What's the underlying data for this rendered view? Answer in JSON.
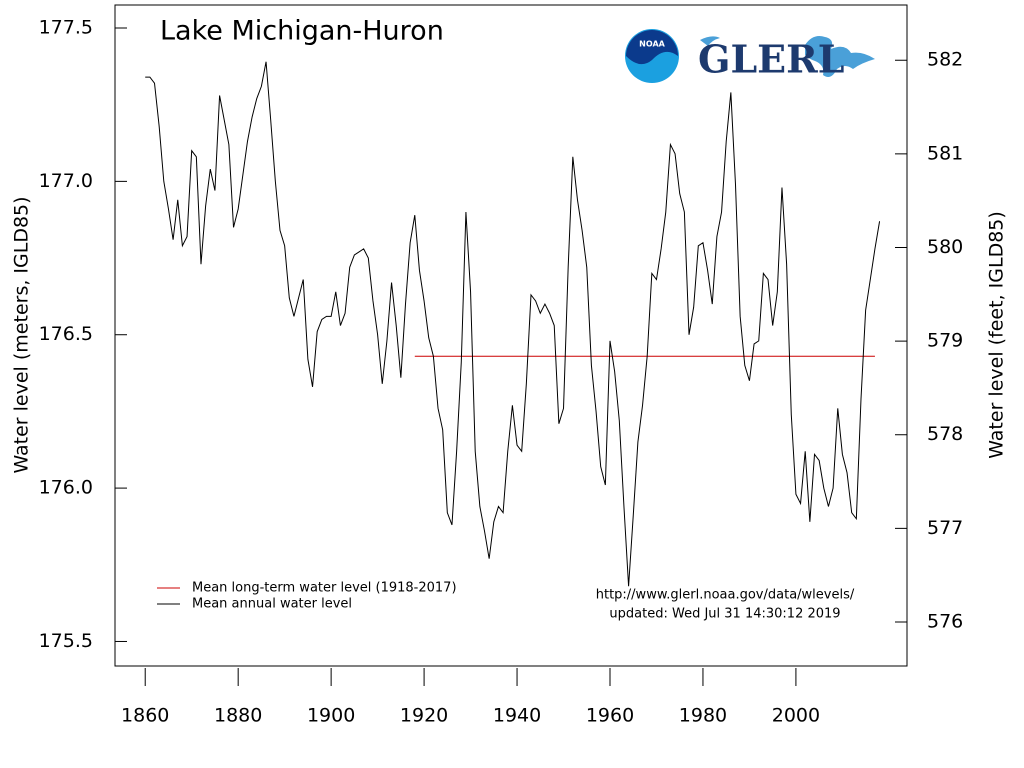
{
  "chart_data": {
    "type": "line",
    "title": "Lake Michigan-Huron",
    "ylabel": "Water level (meters, IGLD85)",
    "y2label": "Water level (feet, IGLD85)",
    "logos": [
      "NOAA",
      "GLERL"
    ],
    "annotations": [
      "http://www.glerl.noaa.gov/data/wlevels/",
      "updated: Wed Jul 31 14:30:12 2019"
    ],
    "xlim": [
      1853.5,
      2023.9
    ],
    "xticks": [
      1860,
      1880,
      1900,
      1920,
      1940,
      1960,
      1980,
      2000
    ],
    "ylim": [
      175.42,
      177.575
    ],
    "yticks": [
      175.5,
      {
        "value": 176.0,
        "label": "176.0"
      },
      176.5,
      {
        "value": 177.0,
        "label": "177.0"
      },
      177.5
    ],
    "y2lim": [
      575.53,
      582.59
    ],
    "y2ticks": [
      576,
      577,
      578,
      579,
      580,
      581,
      582
    ],
    "legend": "lower left",
    "series": [
      {
        "name": "Mean long-term water level (1918-2017)",
        "color": "#cc0000",
        "x": [
          1918,
          2017
        ],
        "values": [
          176.43,
          176.43
        ]
      },
      {
        "name": "Mean annual water level",
        "color": "#000000",
        "x": [
          1860,
          1861,
          1862,
          1863,
          1864,
          1865,
          1866,
          1867,
          1868,
          1869,
          1870,
          1871,
          1872,
          1873,
          1874,
          1875,
          1876,
          1877,
          1878,
          1879,
          1880,
          1881,
          1882,
          1883,
          1884,
          1885,
          1886,
          1887,
          1888,
          1889,
          1890,
          1891,
          1892,
          1893,
          1894,
          1895,
          1896,
          1897,
          1898,
          1899,
          1900,
          1901,
          1902,
          1903,
          1904,
          1905,
          1906,
          1907,
          1908,
          1909,
          1910,
          1911,
          1912,
          1913,
          1914,
          1915,
          1916,
          1917,
          1918,
          1919,
          1920,
          1921,
          1922,
          1923,
          1924,
          1925,
          1926,
          1927,
          1928,
          1929,
          1930,
          1931,
          1932,
          1933,
          1934,
          1935,
          1936,
          1937,
          1938,
          1939,
          1940,
          1941,
          1942,
          1943,
          1944,
          1945,
          1946,
          1947,
          1948,
          1949,
          1950,
          1951,
          1952,
          1953,
          1954,
          1955,
          1956,
          1957,
          1958,
          1959,
          1960,
          1961,
          1962,
          1963,
          1964,
          1965,
          1966,
          1967,
          1968,
          1969,
          1970,
          1971,
          1972,
          1973,
          1974,
          1975,
          1976,
          1977,
          1978,
          1979,
          1980,
          1981,
          1982,
          1983,
          1984,
          1985,
          1986,
          1987,
          1988,
          1989,
          1990,
          1991,
          1992,
          1993,
          1994,
          1995,
          1996,
          1997,
          1998,
          1999,
          2000,
          2001,
          2002,
          2003,
          2004,
          2005,
          2006,
          2007,
          2008,
          2009,
          2010,
          2011,
          2012,
          2013,
          2014,
          2015,
          2016,
          2017,
          2018
        ],
        "values": [
          177.34,
          177.34,
          177.32,
          177.18,
          177.0,
          176.91,
          176.81,
          176.94,
          176.79,
          176.82,
          177.1,
          177.08,
          176.73,
          176.92,
          177.04,
          176.97,
          177.28,
          177.2,
          177.12,
          176.85,
          176.91,
          177.02,
          177.13,
          177.21,
          177.27,
          177.31,
          177.39,
          177.2,
          177.0,
          176.84,
          176.79,
          176.62,
          176.56,
          176.62,
          176.68,
          176.42,
          176.33,
          176.51,
          176.55,
          176.56,
          176.56,
          176.64,
          176.53,
          176.57,
          176.72,
          176.76,
          176.77,
          176.78,
          176.75,
          176.61,
          176.5,
          176.34,
          176.48,
          176.67,
          176.53,
          176.36,
          176.6,
          176.8,
          176.89,
          176.71,
          176.61,
          176.49,
          176.43,
          176.26,
          176.19,
          175.92,
          175.88,
          176.12,
          176.41,
          176.9,
          176.64,
          176.12,
          175.94,
          175.86,
          175.77,
          175.89,
          175.94,
          175.92,
          176.12,
          176.27,
          176.14,
          176.12,
          176.34,
          176.63,
          176.61,
          176.57,
          176.6,
          176.57,
          176.53,
          176.21,
          176.26,
          176.72,
          177.08,
          176.94,
          176.84,
          176.72,
          176.4,
          176.25,
          176.07,
          176.01,
          176.48,
          176.38,
          176.22,
          175.94,
          175.68,
          175.91,
          176.15,
          176.27,
          176.43,
          176.7,
          176.68,
          176.78,
          176.9,
          177.12,
          177.09,
          176.96,
          176.9,
          176.5,
          176.59,
          176.79,
          176.8,
          176.71,
          176.6,
          176.82,
          176.9,
          177.13,
          177.29,
          176.99,
          176.56,
          176.4,
          176.35,
          176.47,
          176.48,
          176.7,
          176.68,
          176.53,
          176.64,
          176.98,
          176.73,
          176.24,
          175.98,
          175.95,
          176.12,
          175.89,
          176.11,
          176.09,
          176.0,
          175.94,
          176.0,
          176.26,
          176.11,
          176.05,
          175.92,
          175.9,
          176.29,
          176.58,
          176.68,
          176.78,
          176.87
        ]
      }
    ]
  }
}
